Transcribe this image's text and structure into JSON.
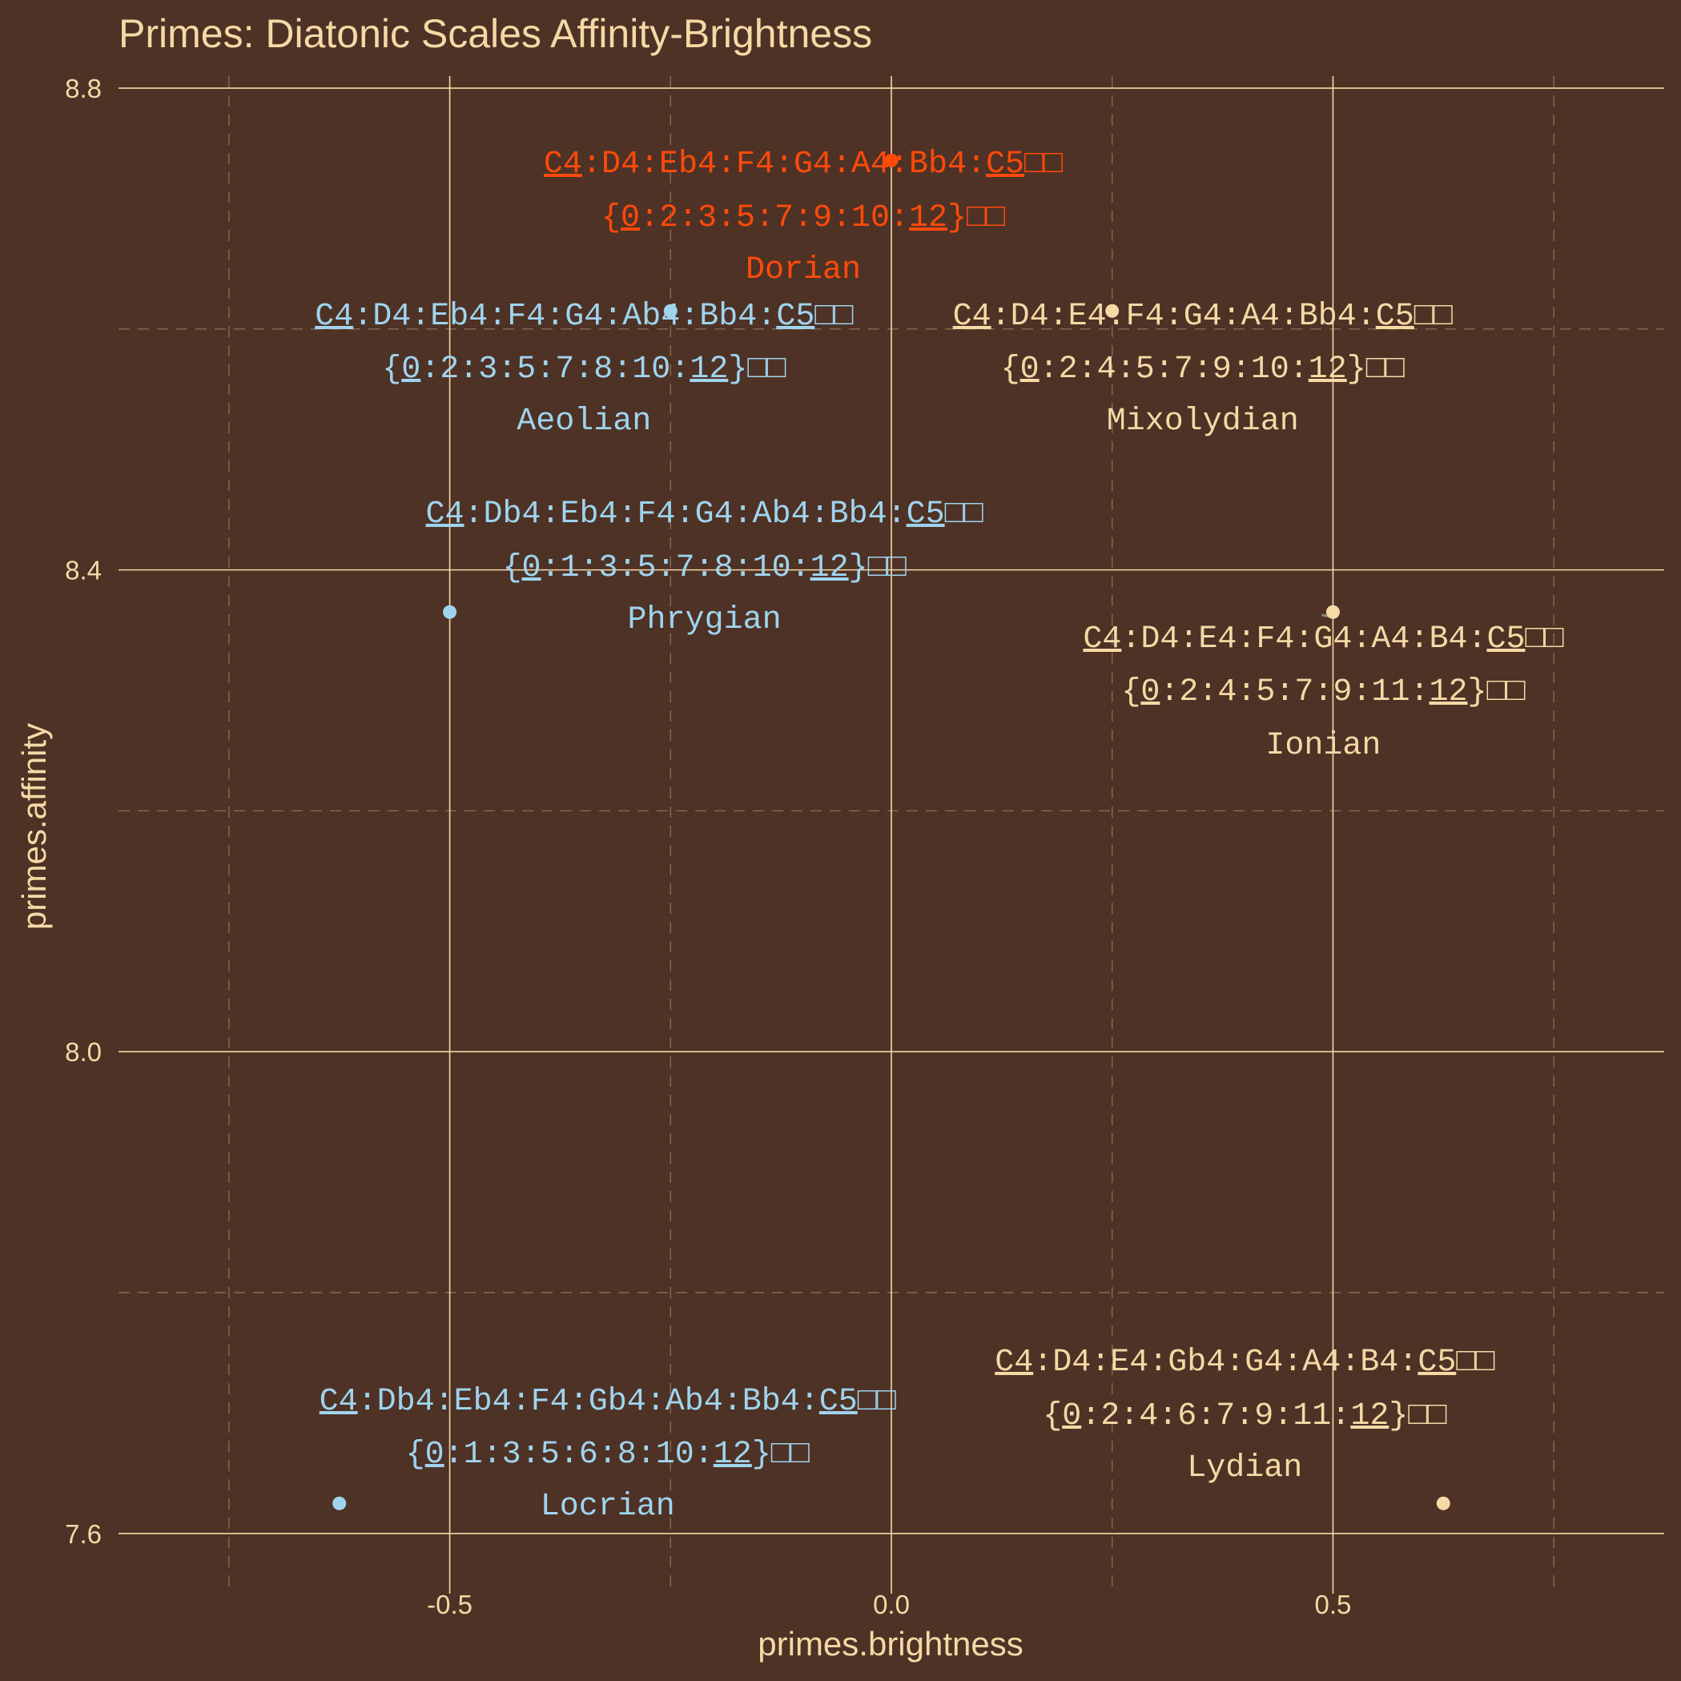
{
  "chart_data": {
    "type": "scatter",
    "title": "Primes: Diatonic Scales Affinity-Brightness",
    "xlabel": "primes.brightness",
    "ylabel": "primes.affinity",
    "xlim": [
      -0.875,
      0.875
    ],
    "ylim": [
      7.55,
      8.81
    ],
    "x_ticks": [
      "-0.5",
      "0.0",
      "0.5"
    ],
    "x_tick_values": [
      -0.5,
      0.0,
      0.5
    ],
    "y_ticks": [
      "7.6",
      "8.0",
      "8.4",
      "8.8"
    ],
    "y_tick_values": [
      7.6,
      8.0,
      8.4,
      8.8
    ],
    "minor_x": [
      -0.75,
      -0.25,
      0.25,
      0.75
    ],
    "minor_y": [
      7.8,
      8.2,
      8.6
    ],
    "grid": true,
    "legend": "none",
    "colors": {
      "background": "#4e3225",
      "text": "#f5d9a6",
      "minor": "#f5d9a6",
      "major": "#9fd4ef",
      "neutral": "#ff4a0a"
    },
    "points": [
      {
        "name": "Dorian",
        "x": 0.0,
        "y": 8.74,
        "tone": "neutral",
        "notes": "C4:D4:Eb4:F4:G4:A4:Bb4:C5",
        "pitches": "{0:2:3:5:7:9:10:12}",
        "suffix": "□□"
      },
      {
        "name": "Aeolian",
        "x": -0.25,
        "y": 8.615,
        "tone": "major",
        "notes": "C4:D4:Eb4:F4:G4:Ab4:Bb4:C5",
        "pitches": "{0:2:3:5:7:8:10:12}",
        "suffix": "□□"
      },
      {
        "name": "Mixolydian",
        "x": 0.25,
        "y": 8.615,
        "tone": "minor",
        "notes": "C4:D4:E4:F4:G4:A4:Bb4:C5",
        "pitches": "{0:2:4:5:7:9:10:12}",
        "suffix": "□□"
      },
      {
        "name": "Phrygian",
        "x": -0.5,
        "y": 8.365,
        "tone": "major",
        "notes": "C4:Db4:Eb4:F4:G4:Ab4:Bb4:C5",
        "pitches": "{0:1:3:5:7:8:10:12}",
        "suffix": "□□"
      },
      {
        "name": "Ionian",
        "x": 0.5,
        "y": 8.365,
        "tone": "minor",
        "notes": "C4:D4:E4:F4:G4:A4:B4:C5",
        "pitches": "{0:2:4:5:7:9:11:12}",
        "suffix": "□□"
      },
      {
        "name": "Locrian",
        "x": -0.625,
        "y": 7.625,
        "tone": "major",
        "notes": "C4:Db4:Eb4:F4:Gb4:Ab4:Bb4:C5",
        "pitches": "{0:1:3:5:6:8:10:12}",
        "suffix": "□□"
      },
      {
        "name": "Lydian",
        "x": 0.625,
        "y": 7.625,
        "tone": "minor",
        "notes": "C4:D4:E4:Gb4:G4:A4:B4:C5",
        "pitches": "{0:2:4:6:7:9:11:12}",
        "suffix": "□□"
      }
    ]
  }
}
